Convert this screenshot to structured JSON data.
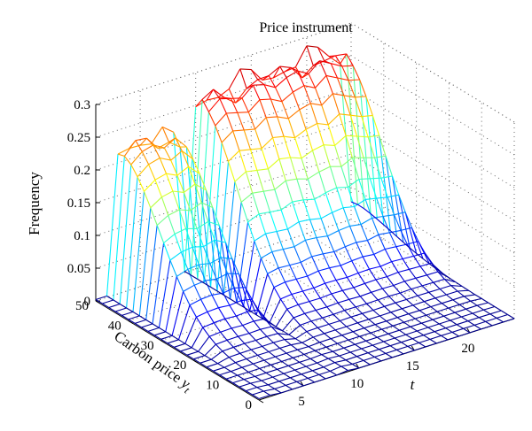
{
  "chart_data": {
    "type": "surface",
    "title": "Price instrument",
    "xlabel": "t",
    "ylabel": "Carbon price y_t",
    "zlabel": "Frequency",
    "x_ticks": [
      "5",
      "10",
      "15",
      "20"
    ],
    "y_ticks": [
      "0",
      "10",
      "20",
      "30",
      "40",
      "50"
    ],
    "z_ticks": [
      "0",
      "0.05",
      "0.1",
      "0.15",
      "0.2",
      "0.25",
      "0.3"
    ],
    "xlim": [
      1,
      24
    ],
    "ylim": [
      0,
      50
    ],
    "zlim": [
      0,
      0.3
    ],
    "grid": true,
    "colormap": [
      "#00008f",
      "#0000ff",
      "#007fff",
      "#00ffff",
      "#7fff7f",
      "#ffff00",
      "#ff7f00",
      "#ff0000",
      "#7f0000"
    ],
    "ridge_profile": {
      "t": [
        1,
        2,
        3,
        4,
        5,
        6,
        7,
        8,
        9,
        10,
        11,
        12,
        13,
        14,
        15,
        16,
        17,
        18,
        19,
        20,
        21,
        22,
        23,
        24
      ],
      "peak_frequency": [
        0.005,
        0.005,
        0.22,
        0.235,
        0.24,
        0.23,
        0.24,
        0.22,
        0.005,
        0.265,
        0.28,
        0.275,
        0.27,
        0.285,
        0.28,
        0.27,
        0.28,
        0.285,
        0.275,
        0.29,
        0.28,
        0.27,
        0.265,
        0.03
      ]
    }
  }
}
